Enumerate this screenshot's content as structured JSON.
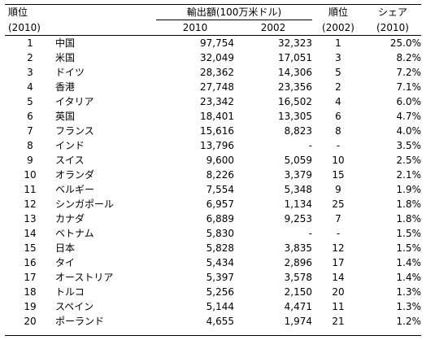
{
  "header": {
    "rank_label": "順位",
    "rank_year": "(2010)",
    "export_group_label": "輸出額(100万米ドル)",
    "col_2010": "2010",
    "col_2002": "2002",
    "rank2002_label": "順位",
    "rank2002_year": "(2002)",
    "share_label": "シェア",
    "share_year": "(2010)"
  },
  "rows": [
    {
      "rank": "1",
      "country": "中国",
      "v2010": "97,754",
      "v2002": "32,323",
      "rank2002": "1",
      "share": "25.0%"
    },
    {
      "rank": "2",
      "country": "米国",
      "v2010": "32,049",
      "v2002": "17,051",
      "rank2002": "3",
      "share": "8.2%"
    },
    {
      "rank": "3",
      "country": "ドイツ",
      "v2010": "28,362",
      "v2002": "14,306",
      "rank2002": "5",
      "share": "7.2%"
    },
    {
      "rank": "4",
      "country": "香港",
      "v2010": "27,748",
      "v2002": "23,356",
      "rank2002": "2",
      "share": "7.1%"
    },
    {
      "rank": "5",
      "country": "イタリア",
      "v2010": "23,342",
      "v2002": "16,502",
      "rank2002": "4",
      "share": "6.0%"
    },
    {
      "rank": "6",
      "country": "英国",
      "v2010": "18,401",
      "v2002": "13,305",
      "rank2002": "6",
      "share": "4.7%"
    },
    {
      "rank": "7",
      "country": "フランス",
      "v2010": "15,616",
      "v2002": "8,823",
      "rank2002": "8",
      "share": "4.0%"
    },
    {
      "rank": "8",
      "country": "インド",
      "v2010": "13,796",
      "v2002": "-",
      "rank2002": "-",
      "share": "3.5%"
    },
    {
      "rank": "9",
      "country": "スイス",
      "v2010": "9,600",
      "v2002": "5,059",
      "rank2002": "10",
      "share": "2.5%"
    },
    {
      "rank": "10",
      "country": "オランダ",
      "v2010": "8,226",
      "v2002": "3,379",
      "rank2002": "15",
      "share": "2.1%"
    },
    {
      "rank": "11",
      "country": "ベルギー",
      "v2010": "7,554",
      "v2002": "5,348",
      "rank2002": "9",
      "share": "1.9%"
    },
    {
      "rank": "12",
      "country": "シンガポール",
      "v2010": "6,957",
      "v2002": "1,134",
      "rank2002": "25",
      "share": "1.8%"
    },
    {
      "rank": "13",
      "country": "カナダ",
      "v2010": "6,889",
      "v2002": "9,253",
      "rank2002": "7",
      "share": "1.8%"
    },
    {
      "rank": "14",
      "country": "ベトナム",
      "v2010": "5,830",
      "v2002": "-",
      "rank2002": "-",
      "share": "1.5%"
    },
    {
      "rank": "15",
      "country": "日本",
      "v2010": "5,828",
      "v2002": "3,835",
      "rank2002": "12",
      "share": "1.5%"
    },
    {
      "rank": "16",
      "country": "タイ",
      "v2010": "5,434",
      "v2002": "2,896",
      "rank2002": "17",
      "share": "1.4%"
    },
    {
      "rank": "17",
      "country": "オーストリア",
      "v2010": "5,397",
      "v2002": "3,578",
      "rank2002": "14",
      "share": "1.4%"
    },
    {
      "rank": "18",
      "country": "トルコ",
      "v2010": "5,256",
      "v2002": "2,150",
      "rank2002": "20",
      "share": "1.3%"
    },
    {
      "rank": "19",
      "country": "スペイン",
      "v2010": "5,144",
      "v2002": "4,471",
      "rank2002": "11",
      "share": "1.3%"
    },
    {
      "rank": "20",
      "country": "ポーランド",
      "v2010": "4,655",
      "v2002": "1,974",
      "rank2002": "21",
      "share": "1.2%"
    }
  ]
}
